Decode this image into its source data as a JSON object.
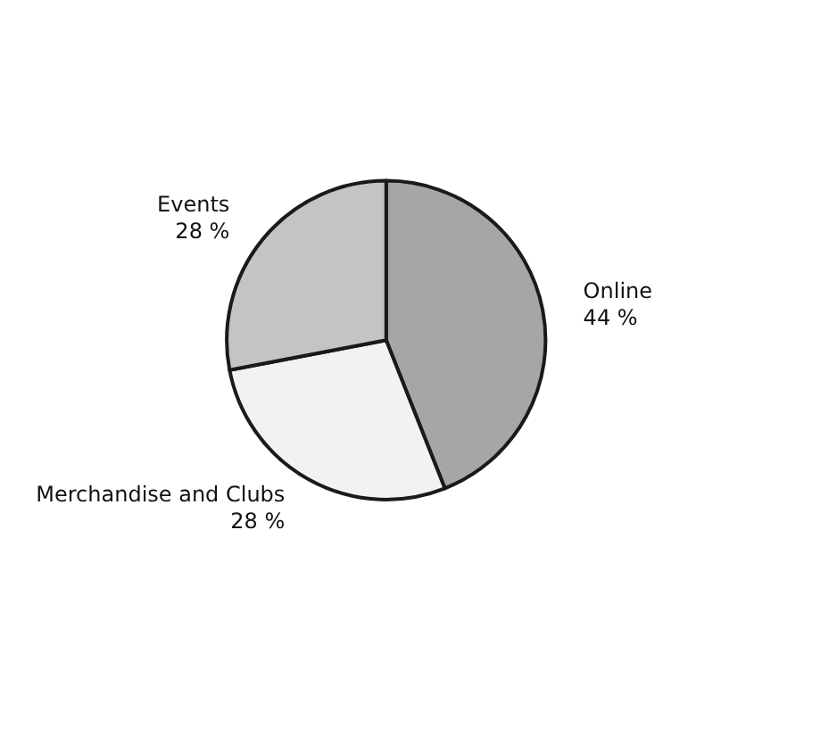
{
  "chart_data": {
    "type": "pie",
    "categories": [
      "Online",
      "Merchandise and Clubs",
      "Events"
    ],
    "values": [
      44,
      28,
      28
    ],
    "value_labels": [
      "44 %",
      "28 %",
      "28 %"
    ],
    "colors": [
      "#a6a6a6",
      "#f2f2f2",
      "#c4c4c4"
    ],
    "legend": false
  }
}
